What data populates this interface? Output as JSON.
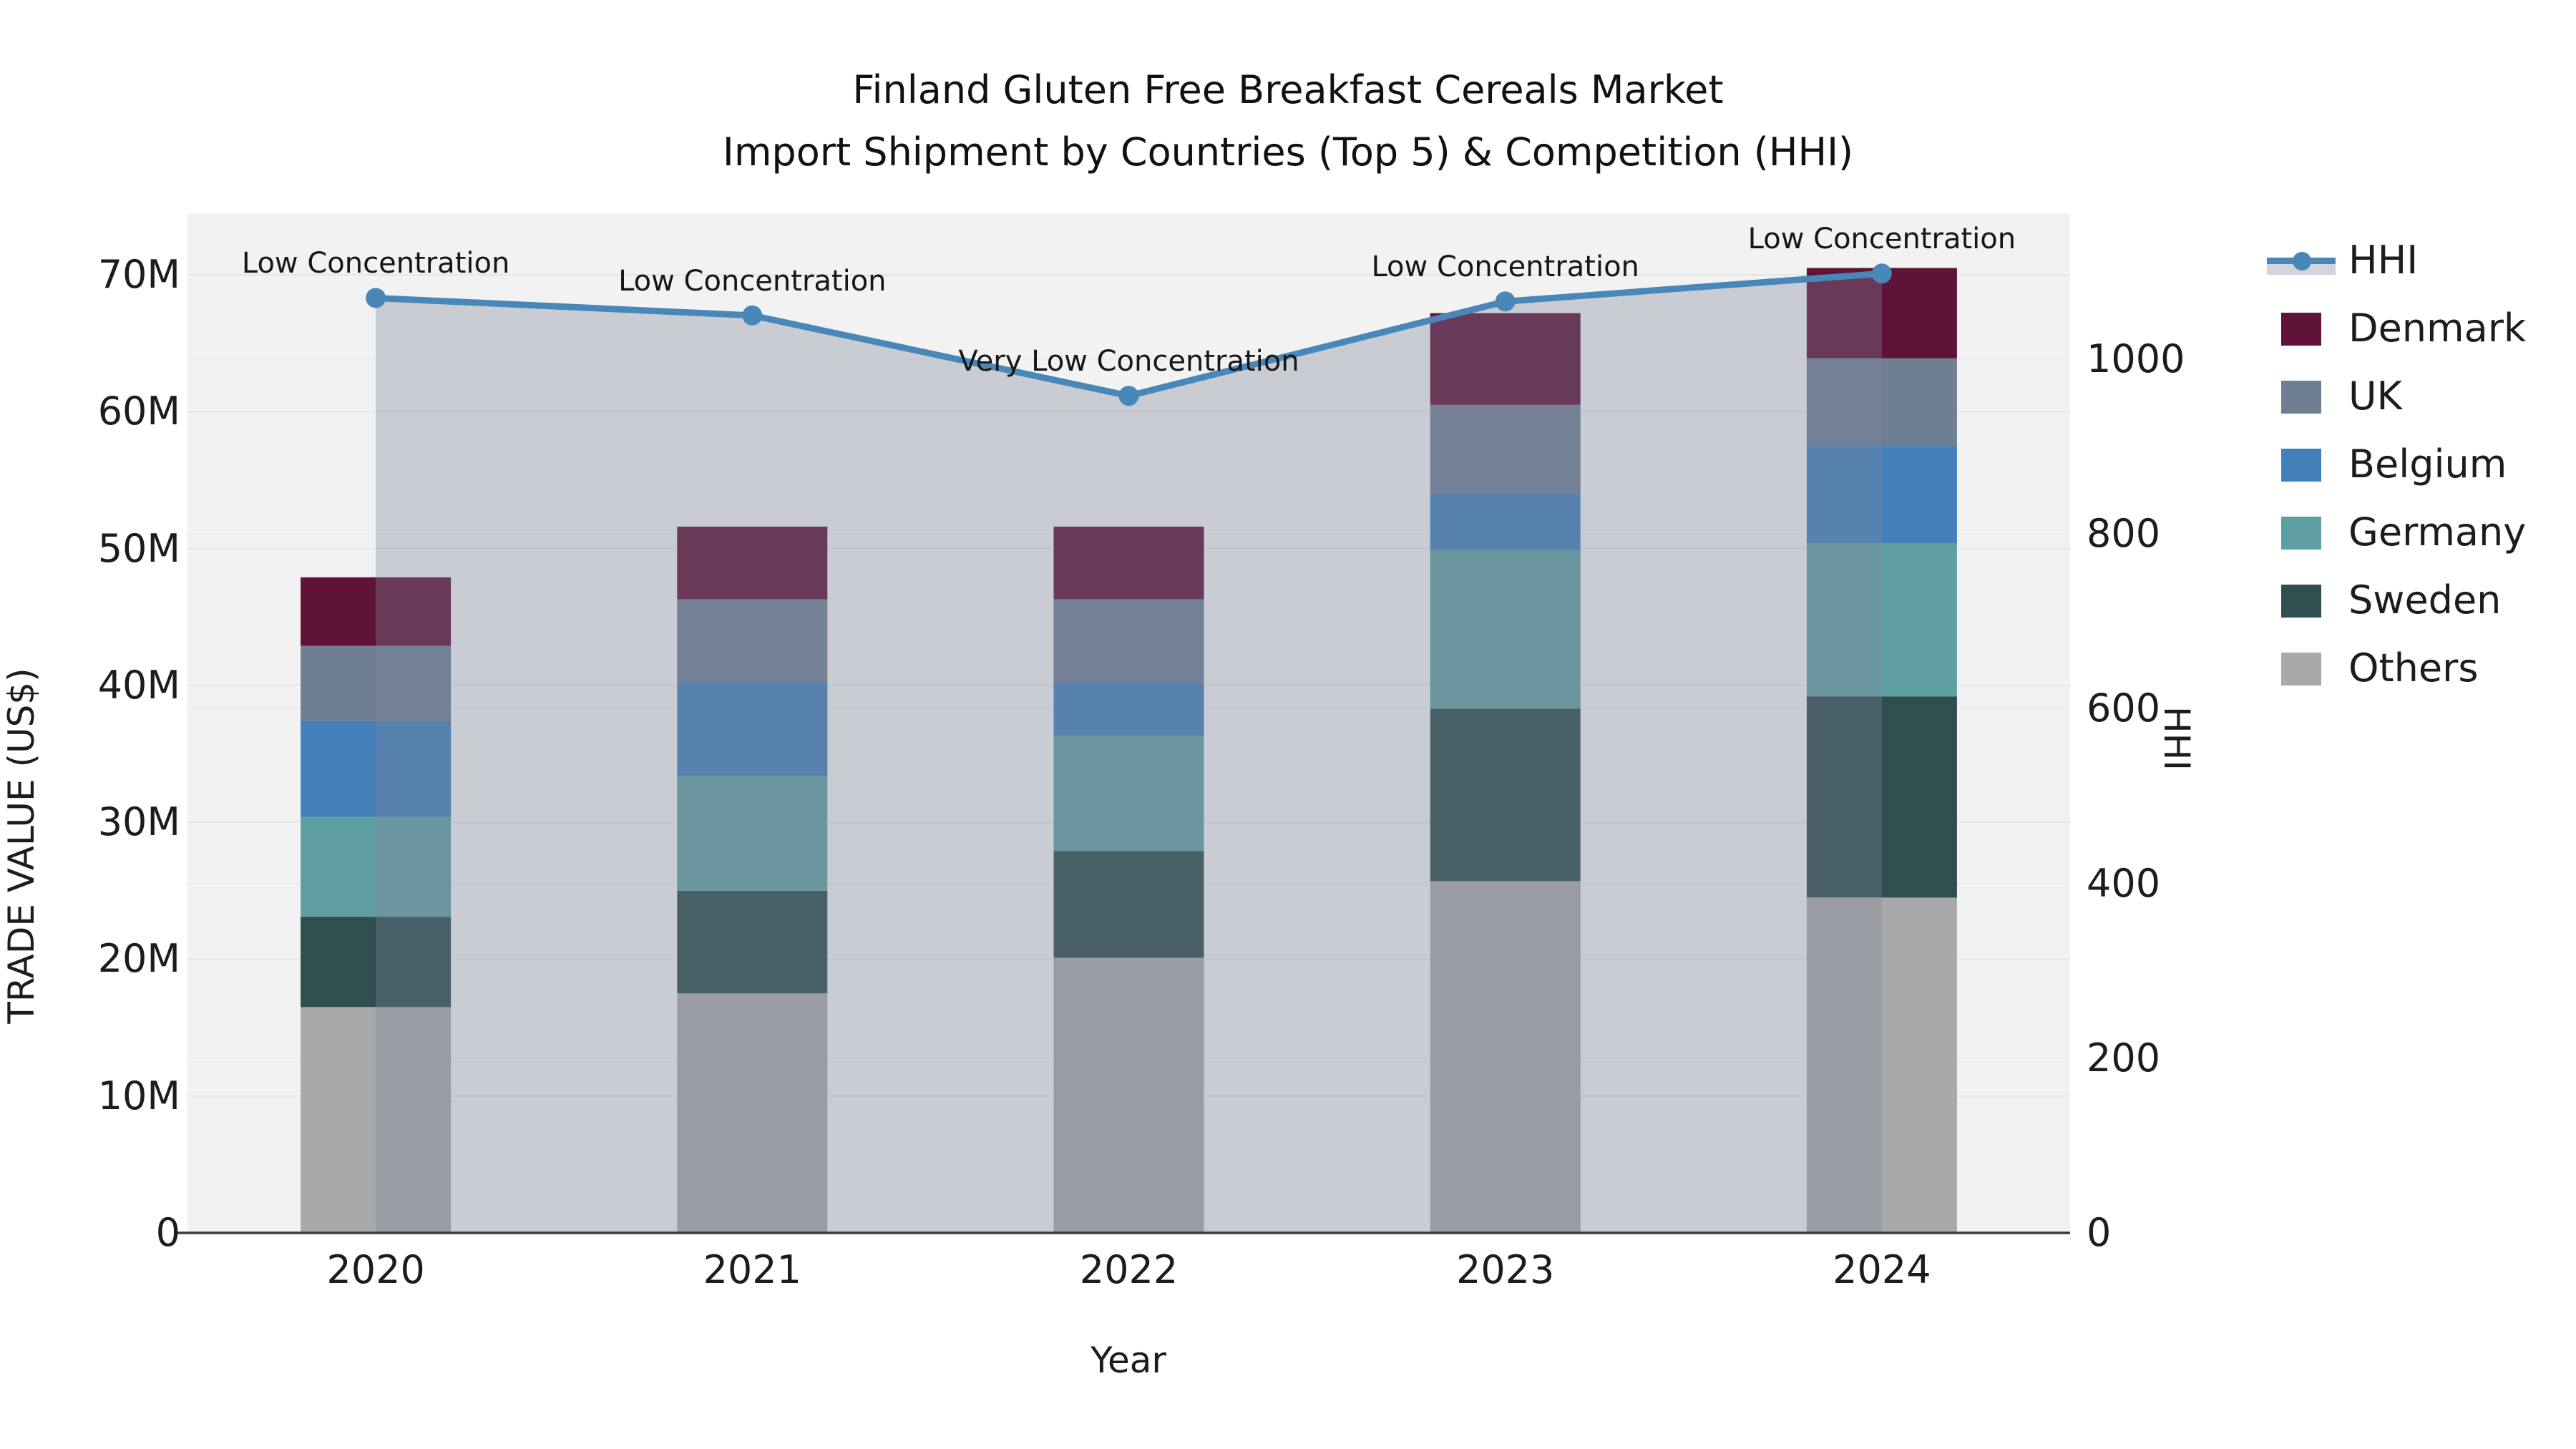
{
  "title": {
    "line1": "Finland Gluten Free Breakfast Cereals Market",
    "line2": "Import Shipment by Countries (Top 5) & Competition (HHI)"
  },
  "axes": {
    "x": {
      "title": "Year",
      "categories": [
        "2020",
        "2021",
        "2022",
        "2023",
        "2024"
      ]
    },
    "y_left": {
      "title": "TRADE VALUE (US$)",
      "tick_labels": [
        "0",
        "10M",
        "20M",
        "30M",
        "40M",
        "50M",
        "60M",
        "70M"
      ],
      "tick_values_musd": [
        0,
        10,
        20,
        30,
        40,
        50,
        60,
        70
      ],
      "max_musd": 74.5
    },
    "y_right": {
      "title": "HHI",
      "tick_labels": [
        "0",
        "200",
        "400",
        "600",
        "800",
        "1000"
      ],
      "tick_values": [
        0,
        200,
        400,
        600,
        800,
        1000
      ],
      "max": 1167
    }
  },
  "colors": {
    "page_bg": "#ffffff",
    "plot_bg": "#f2f2f2",
    "grid_left": "#e4e4e4",
    "grid_right": "#ececec",
    "axis_line": "#3a3a3a",
    "text": "#1c1c1c",
    "hhi_line": "#4a87b9",
    "hhi_area_fill": "rgba(125,132,155,0.34)",
    "denmark": "#5e1337",
    "uk": "#6e7f92",
    "belgium": "#4380ba",
    "germany": "#5ea0a1",
    "sweden": "#2f4e4f",
    "others": "#a9a9a9"
  },
  "legend": [
    {
      "label": "HHI",
      "type": "line",
      "color": "#4a87b9",
      "band_color": "rgba(125,132,155,0.34)"
    },
    {
      "label": "Denmark",
      "type": "bar",
      "color": "#5e1337"
    },
    {
      "label": "UK",
      "type": "bar",
      "color": "#6e7f92"
    },
    {
      "label": "Belgium",
      "type": "bar",
      "color": "#4380ba"
    },
    {
      "label": "Germany",
      "type": "bar",
      "color": "#5ea0a1"
    },
    {
      "label": "Sweden",
      "type": "bar",
      "color": "#2f4e4f"
    },
    {
      "label": "Others",
      "type": "bar",
      "color": "#a9a9a9"
    }
  ],
  "chart_data": {
    "type": "bar+line",
    "title": "Finland Gluten Free Breakfast Cereals Market — Import Shipment by Countries (Top 5) & Competition (HHI)",
    "xlabel": "Year",
    "ylabel_left": "TRADE VALUE (US$)",
    "ylabel_right": "HHI",
    "categories": [
      "2020",
      "2021",
      "2022",
      "2023",
      "2024"
    ],
    "bar_mode": "stacked",
    "stack_order_bottom_to_top": [
      "Others",
      "Sweden",
      "Germany",
      "Belgium",
      "UK",
      "Denmark"
    ],
    "series": [
      {
        "name": "Denmark",
        "type": "bar",
        "color": "#5e1337",
        "values_musd": [
          5.0,
          5.3,
          5.3,
          6.7,
          6.6
        ]
      },
      {
        "name": "UK",
        "type": "bar",
        "color": "#6e7f92",
        "values_musd": [
          5.5,
          6.1,
          6.1,
          6.5,
          6.4
        ]
      },
      {
        "name": "Belgium",
        "type": "bar",
        "color": "#4380ba",
        "values_musd": [
          7.0,
          6.8,
          3.9,
          4.1,
          7.1
        ]
      },
      {
        "name": "Germany",
        "type": "bar",
        "color": "#5ea0a1",
        "values_musd": [
          7.3,
          8.4,
          8.4,
          11.6,
          11.2
        ]
      },
      {
        "name": "Sweden",
        "type": "bar",
        "color": "#2f4e4f",
        "values_musd": [
          6.6,
          7.5,
          7.8,
          12.6,
          14.7
        ]
      },
      {
        "name": "Others",
        "type": "bar",
        "color": "#a9a9a9",
        "values_musd": [
          16.5,
          17.5,
          20.1,
          25.7,
          24.5
        ]
      }
    ],
    "totals_musd": [
      47.9,
      51.6,
      51.6,
      67.2,
      70.5
    ],
    "hhi_line": {
      "name": "HHI",
      "type": "line",
      "color": "#4a87b9",
      "area_fill": "rgba(125,132,155,0.34)",
      "values": [
        1070,
        1050,
        958,
        1066,
        1098
      ]
    },
    "annotations": [
      {
        "category": "2020",
        "text": "Low Concentration"
      },
      {
        "category": "2021",
        "text": "Low Concentration"
      },
      {
        "category": "2022",
        "text": "Very Low Concentration"
      },
      {
        "category": "2023",
        "text": "Low Concentration"
      },
      {
        "category": "2024",
        "text": "Low Concentration"
      }
    ],
    "ylim_left_musd": [
      0,
      74.5
    ],
    "ylim_right": [
      0,
      1167
    ],
    "grid": true,
    "legend_position": "right"
  }
}
